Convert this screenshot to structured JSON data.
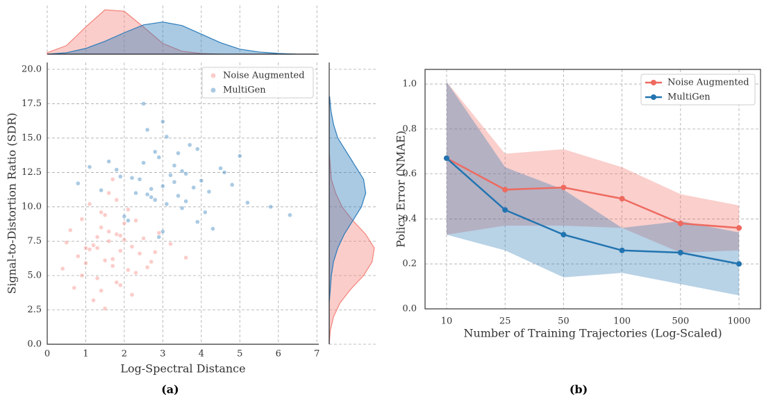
{
  "chart_data": [
    {
      "type": "scatter",
      "caption": "(a)",
      "x_label": "Log-Spectral Distance",
      "y_label": "Signal-to-Distortion Ratio (SDR)",
      "xlim": [
        0,
        7.05
      ],
      "ylim": [
        0,
        20.5
      ],
      "xticks": [
        0,
        1,
        2,
        3,
        4,
        5,
        6,
        7
      ],
      "yticks": [
        {
          "value": 0,
          "label": "0.0"
        },
        2.5,
        {
          "value": 5,
          "label": "5.0"
        },
        7.5,
        {
          "value": 10,
          "label": "10.0"
        },
        12.5,
        {
          "value": 15,
          "label": "15.0"
        },
        17.5,
        {
          "value": 20,
          "label": "20.0"
        }
      ],
      "grid": true,
      "legend": "upper right",
      "series": [
        {
          "name": "Noise Augmented",
          "color": "#f4837a",
          "x": [
            1.2,
            1.5,
            1.8,
            2.1,
            0.9,
            1.6,
            2.4,
            1.3,
            1.9,
            2.7,
            0.6,
            1.1,
            1.7,
            2.2,
            1.4,
            2.0,
            0.8,
            1.5,
            2.5,
            1.8,
            1.0,
            1.3,
            2.9,
            1.6,
            2.3,
            0.5,
            1.9,
            1.2,
            2.1,
            1.7,
            3.2,
            1.4,
            0.7,
            2.6,
            1.8,
            1.1,
            2.0,
            1.5,
            3.6,
            1.6,
            0.9,
            2.3,
            1.3,
            1.9,
            2.8,
            1.7,
            0.4,
            1.4,
            2.2,
            1.0
          ],
          "values": [
            7.2,
            6.1,
            8.0,
            5.4,
            9.1,
            7.5,
            6.6,
            4.8,
            7.9,
            6.0,
            8.3,
            10.2,
            5.7,
            7.1,
            3.9,
            8.8,
            6.4,
            9.4,
            7.7,
            4.5,
            5.9,
            7.0,
            8.1,
            11.0,
            5.2,
            7.4,
            6.8,
            3.2,
            9.8,
            6.2,
            7.3,
            8.5,
            4.1,
            5.6,
            10.5,
            6.9,
            7.6,
            2.6,
            6.3,
            8.2,
            5.0,
            9.0,
            7.8,
            4.3,
            6.7,
            12.0,
            5.5,
            9.6,
            3.6,
            7.0
          ]
        },
        {
          "name": "MultiGen",
          "color": "#2b7bba",
          "x": [
            3.0,
            2.5,
            3.6,
            2.2,
            4.1,
            2.8,
            3.3,
            1.8,
            3.9,
            2.6,
            4.6,
            3.1,
            1.4,
            3.5,
            2.9,
            5.2,
            2.4,
            3.8,
            3.0,
            4.3,
            1.1,
            2.7,
            3.4,
            4.8,
            2.0,
            3.2,
            3.7,
            2.3,
            5.8,
            2.9,
            3.5,
            1.6,
            4.0,
            2.6,
            3.1,
            4.5,
            2.1,
            3.3,
            0.8,
            3.9,
            2.8,
            6.3,
            3.6,
            2.5,
            4.2,
            3.0,
            1.9,
            3.4,
            5.0,
            2.7
          ],
          "values": [
            11.5,
            13.2,
            10.4,
            12.1,
            9.6,
            14.0,
            11.8,
            12.7,
            8.9,
            10.9,
            12.5,
            15.1,
            11.2,
            9.9,
            13.6,
            10.3,
            12.0,
            11.4,
            16.2,
            8.4,
            12.9,
            10.7,
            13.9,
            11.6,
            9.3,
            12.3,
            14.5,
            11.0,
            10.0,
            7.8,
            12.6,
            13.3,
            11.9,
            15.6,
            10.2,
            12.8,
            9.0,
            13.0,
            11.7,
            14.2,
            10.5,
            9.4,
            12.4,
            17.5,
            11.1,
            8.2,
            12.2,
            10.8,
            13.7,
            11.3
          ]
        }
      ],
      "top_kde": {
        "x": [
          0,
          0.5,
          1,
          1.5,
          2,
          2.5,
          3,
          3.5,
          4,
          4.5,
          5,
          5.5,
          6,
          6.5,
          7
        ],
        "ylim": [
          0,
          0.68
        ],
        "values": [
          [
            0.02,
            0.12,
            0.38,
            0.62,
            0.6,
            0.38,
            0.15,
            0.04,
            0.01,
            0,
            0,
            0,
            0,
            0,
            0
          ],
          [
            0,
            0.02,
            0.08,
            0.18,
            0.3,
            0.41,
            0.45,
            0.4,
            0.28,
            0.16,
            0.07,
            0.03,
            0.01,
            0,
            0
          ]
        ]
      },
      "right_kde": {
        "y": [
          0,
          1,
          2,
          3,
          4,
          5,
          6,
          7,
          8,
          9,
          10,
          11,
          12,
          13,
          14,
          15,
          16,
          17,
          18
        ],
        "xlim": [
          0,
          0.22
        ],
        "values": [
          [
            0,
            0.005,
            0.02,
            0.05,
            0.1,
            0.16,
            0.2,
            0.21,
            0.17,
            0.11,
            0.06,
            0.03,
            0.01,
            0.005,
            0,
            0,
            0,
            0,
            0
          ],
          [
            0,
            0,
            0,
            0,
            0.005,
            0.01,
            0.02,
            0.04,
            0.07,
            0.11,
            0.15,
            0.17,
            0.16,
            0.12,
            0.08,
            0.04,
            0.02,
            0.008,
            0.002
          ]
        ]
      }
    },
    {
      "type": "line",
      "caption": "(b)",
      "x_label": "Number of Training Trajectories (Log-Scaled)",
      "y_label": "Policy Error (NMAE)",
      "categories": [
        "10",
        "25",
        "50",
        "100",
        "500",
        "1000"
      ],
      "ylim": [
        0,
        1.065
      ],
      "yticks": [
        {
          "value": 0,
          "label": "0.0"
        },
        0.2,
        0.4,
        0.6,
        0.8,
        {
          "value": 1,
          "label": "1.0"
        }
      ],
      "grid": true,
      "legend": "upper right",
      "series": [
        {
          "name": "Noise Augmented",
          "color": "#ee6a5f",
          "values": [
            0.67,
            0.53,
            0.54,
            0.49,
            0.38,
            0.36
          ],
          "upper": [
            1.01,
            0.69,
            0.71,
            0.63,
            0.51,
            0.46
          ],
          "lower": [
            0.33,
            0.37,
            0.37,
            0.36,
            0.25,
            0.26
          ]
        },
        {
          "name": "MultiGen",
          "color": "#2174b0",
          "values": [
            0.67,
            0.44,
            0.33,
            0.26,
            0.25,
            0.2
          ],
          "upper": [
            1.01,
            0.63,
            0.53,
            0.36,
            0.39,
            0.34
          ],
          "lower": [
            0.33,
            0.26,
            0.14,
            0.16,
            0.11,
            0.06
          ]
        }
      ]
    }
  ]
}
